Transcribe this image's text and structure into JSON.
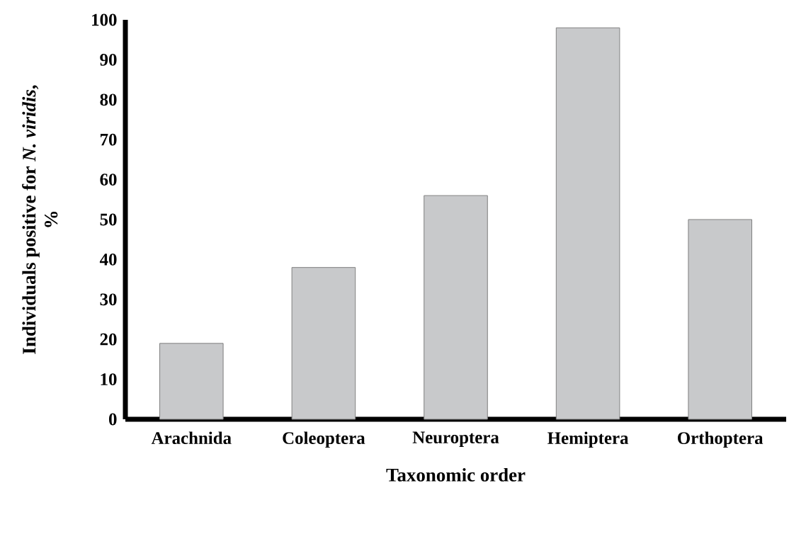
{
  "chart_data": {
    "type": "bar",
    "categories": [
      "Arachnida",
      "Coleoptera",
      "Neuroptera",
      "Hemiptera",
      "Orthoptera"
    ],
    "values": [
      19,
      38,
      56,
      98,
      50
    ],
    "color": "#c8c9cb",
    "xlabel": "Taxonomic order",
    "ylabel": "Individuals positive for *N. viridis*, %",
    "ylim": [
      0,
      100
    ],
    "yticks": [
      0,
      10,
      20,
      30,
      40,
      50,
      60,
      70,
      80,
      90,
      100
    ],
    "grid": false
  }
}
